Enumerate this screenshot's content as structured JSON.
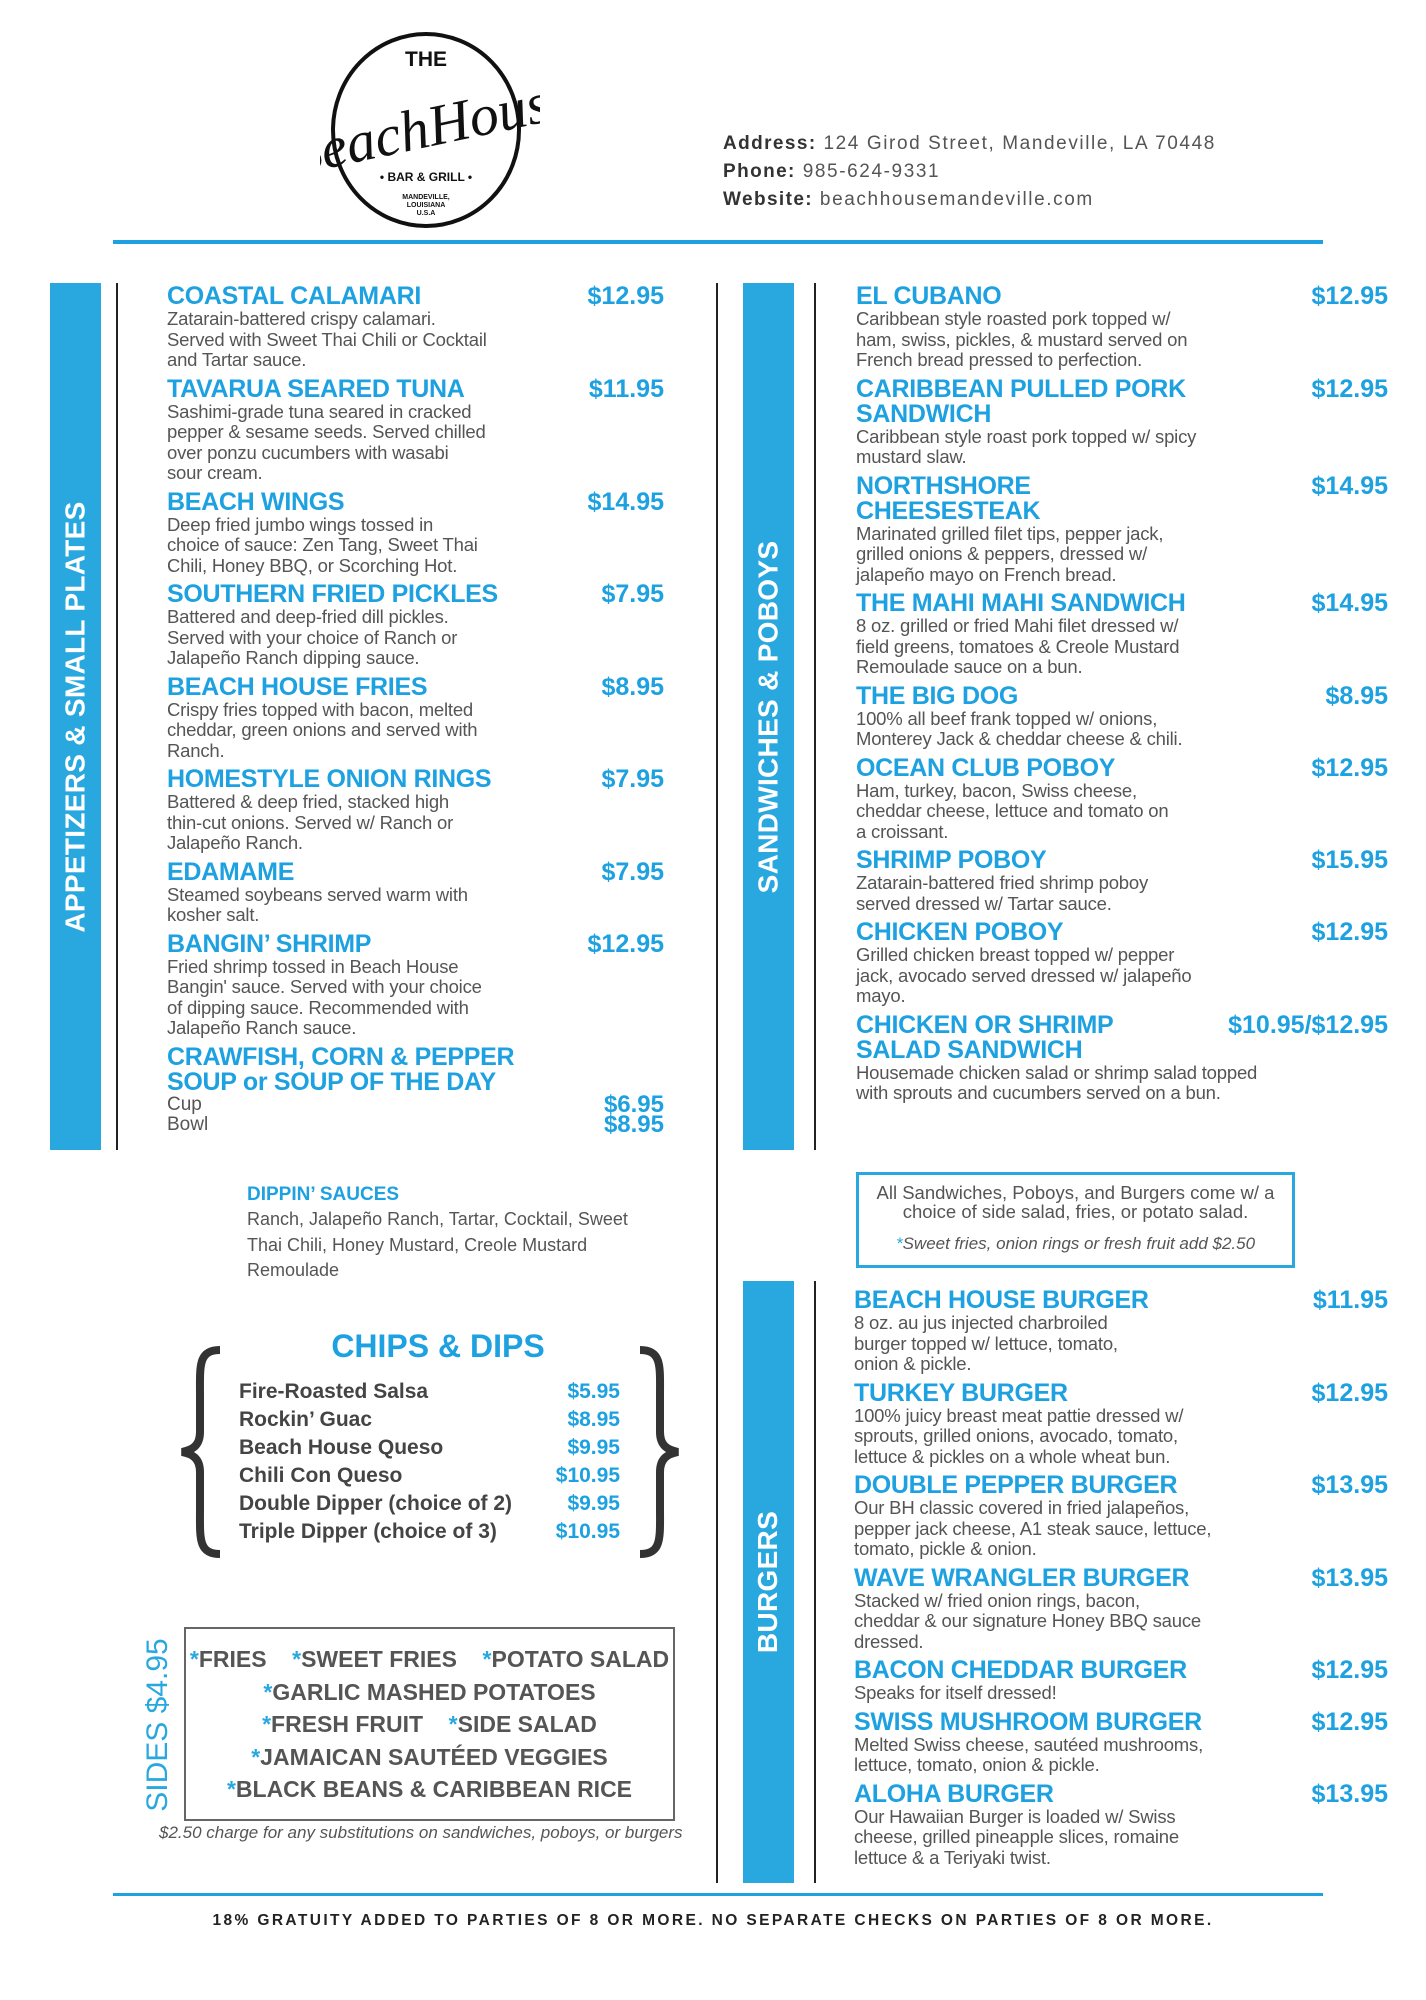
{
  "logo": {
    "top": "THE",
    "script": "BeachHouse",
    "sub": "• BAR & GRILL •",
    "place": [
      "MANDEVILLE,",
      "LOUISIANA",
      "U.S.A"
    ]
  },
  "contact": [
    {
      "label": "Address:",
      "value": "124 Girod Street, Mandeville, LA 70448"
    },
    {
      "label": "Phone:",
      "value": "985-624-9331"
    },
    {
      "label": "Website:",
      "value": "beachhousemandeville.com"
    }
  ],
  "colors": {
    "accent": "#29a8e0",
    "text": "#555555"
  },
  "appetizers": {
    "title": "APPETIZERS & SMALL PLATES",
    "items": [
      {
        "name": [
          "COASTAL CALAMARI"
        ],
        "price": "$12.95",
        "desc": [
          "Zatarain-battered crispy calamari.",
          "Served with Sweet Thai Chili or Cocktail",
          "and Tartar sauce."
        ]
      },
      {
        "name": [
          "TAVARUA SEARED TUNA"
        ],
        "price": "$11.95",
        "desc": [
          "Sashimi-grade tuna seared in cracked",
          "pepper & sesame seeds. Served chilled",
          "over ponzu cucumbers with wasabi",
          "sour cream."
        ]
      },
      {
        "name": [
          "BEACH WINGS"
        ],
        "price": "$14.95",
        "desc": [
          "Deep fried jumbo wings tossed in",
          "choice of sauce: Zen Tang, Sweet Thai",
          "Chili, Honey BBQ, or Scorching Hot."
        ]
      },
      {
        "name": [
          "SOUTHERN FRIED PICKLES"
        ],
        "price": "$7.95",
        "desc": [
          "Battered and deep-fried dill pickles.",
          "Served with your choice of Ranch or",
          "Jalapeño Ranch dipping sauce."
        ]
      },
      {
        "name": [
          "BEACH HOUSE FRIES"
        ],
        "price": "$8.95",
        "desc": [
          "Crispy fries topped with bacon, melted",
          "cheddar, green onions and served with",
          "Ranch."
        ]
      },
      {
        "name": [
          "HOMESTYLE ONION RINGS"
        ],
        "price": "$7.95",
        "desc": [
          "Battered & deep fried, stacked high",
          "thin-cut onions. Served w/ Ranch or",
          "Jalapeño Ranch."
        ]
      },
      {
        "name": [
          "EDAMAME"
        ],
        "price": "$7.95",
        "desc": [
          "Steamed soybeans served warm with",
          "kosher salt."
        ]
      },
      {
        "name": [
          "BANGIN’ SHRIMP"
        ],
        "price": "$12.95",
        "desc": [
          "Fried shrimp tossed in Beach House",
          "Bangin' sauce. Served with your choice",
          "of dipping sauce. Recommended with",
          "Jalapeño Ranch sauce."
        ]
      },
      {
        "name": [
          "CRAWFISH, CORN & PEPPER",
          "SOUP or SOUP OF THE DAY"
        ],
        "price": "",
        "desc": [],
        "options": [
          {
            "label": "Cup",
            "price": "$6.95"
          },
          {
            "label": "Bowl",
            "price": "$8.95"
          }
        ]
      }
    ]
  },
  "dippin": {
    "title": "DIPPIN’ SAUCES",
    "lines": [
      "Ranch, Jalapeño Ranch, Tartar, Cocktail, Sweet",
      "Thai Chili, Honey Mustard, Creole Mustard",
      "Remoulade"
    ]
  },
  "chips": {
    "title": "CHIPS & DIPS",
    "items": [
      {
        "name": "Fire-Roasted Salsa",
        "price": "$5.95"
      },
      {
        "name": "Rockin’ Guac",
        "price": "$8.95"
      },
      {
        "name": "Beach House Queso",
        "price": "$9.95"
      },
      {
        "name": "Chili Con Queso",
        "price": "$10.95"
      },
      {
        "name": "Double Dipper (choice of 2)",
        "price": "$9.95"
      },
      {
        "name": "Triple Dipper (choice of 3)",
        "price": "$10.95"
      }
    ]
  },
  "sides": {
    "title": "SIDES $4.95",
    "lines": [
      [
        "FRIES",
        "SWEET FRIES",
        "POTATO SALAD"
      ],
      [
        "GARLIC MASHED POTATOES"
      ],
      [
        "FRESH FRUIT",
        "SIDE SALAD"
      ],
      [
        "JAMAICAN SAUTÉED VEGGIES"
      ],
      [
        "BLACK BEANS & CARIBBEAN RICE"
      ]
    ],
    "note": "$2.50 charge for any substitutions on sandwiches, poboys, or burgers"
  },
  "sandwiches": {
    "title": "SANDWICHES & POBOYS",
    "items": [
      {
        "name": [
          "EL CUBANO"
        ],
        "price": "$12.95",
        "desc": [
          "Caribbean style roasted pork topped w/",
          "ham, swiss, pickles, & mustard served on",
          "French bread pressed to perfection."
        ]
      },
      {
        "name": [
          "CARIBBEAN PULLED PORK",
          "SANDWICH"
        ],
        "price": "$12.95",
        "desc": [
          "Caribbean style roast pork topped w/ spicy",
          "mustard slaw."
        ]
      },
      {
        "name": [
          "NORTHSHORE",
          "CHEESESTEAK"
        ],
        "price": "$14.95",
        "desc": [
          "Marinated grilled filet tips, pepper jack,",
          "grilled onions & peppers, dressed w/",
          "jalapeño mayo on French bread."
        ]
      },
      {
        "name": [
          "THE MAHI MAHI SANDWICH"
        ],
        "price": "$14.95",
        "desc": [
          "8 oz. grilled or fried Mahi filet dressed w/",
          "field greens, tomatoes & Creole Mustard",
          "Remoulade sauce on a bun."
        ]
      },
      {
        "name": [
          "THE BIG DOG"
        ],
        "price": "$8.95",
        "desc": [
          "100% all beef frank topped w/ onions,",
          "Monterey Jack & cheddar cheese & chili."
        ]
      },
      {
        "name": [
          "OCEAN CLUB POBOY"
        ],
        "price": "$12.95",
        "desc": [
          "Ham, turkey, bacon, Swiss cheese,",
          "cheddar cheese, lettuce and tomato on",
          "a croissant."
        ]
      },
      {
        "name": [
          "SHRIMP POBOY"
        ],
        "price": "$15.95",
        "desc": [
          "Zatarain-battered fried shrimp poboy",
          "served dressed w/ Tartar sauce."
        ]
      },
      {
        "name": [
          "CHICKEN POBOY"
        ],
        "price": "$12.95",
        "desc": [
          "Grilled chicken breast topped w/ pepper",
          "jack, avocado served dressed w/ jalapeño",
          "mayo."
        ]
      },
      {
        "name": [
          "CHICKEN OR SHRIMP",
          "SALAD SANDWICH"
        ],
        "price": "$10.95/$12.95",
        "desc": [
          "Housemade chicken salad or shrimp salad topped",
          "with sprouts and cucumbers served on a bun."
        ]
      }
    ]
  },
  "side_note": {
    "lines": [
      "All Sandwiches, Poboys, and Burgers come w/ a",
      "choice of side salad, fries, or potato salad."
    ],
    "asterisk": "*",
    "upcharge": "Sweet fries, onion rings or fresh fruit add $2.50"
  },
  "burgers": {
    "title": "BURGERS",
    "items": [
      {
        "name": [
          "BEACH HOUSE BURGER"
        ],
        "price": "$11.95",
        "desc": [
          "8 oz. au jus injected charbroiled",
          "burger topped w/ lettuce, tomato,",
          "onion & pickle."
        ]
      },
      {
        "name": [
          "TURKEY BURGER"
        ],
        "price": "$12.95",
        "desc": [
          "100% juicy breast meat pattie dressed w/",
          "sprouts, grilled onions, avocado, tomato,",
          "lettuce & pickles on a whole wheat bun."
        ]
      },
      {
        "name": [
          "DOUBLE PEPPER BURGER"
        ],
        "price": "$13.95",
        "desc": [
          "Our BH classic covered in fried jalapeños,",
          "pepper jack cheese, A1 steak sauce, lettuce,",
          "tomato, pickle & onion."
        ]
      },
      {
        "name": [
          "WAVE WRANGLER BURGER"
        ],
        "price": "$13.95",
        "desc": [
          "Stacked w/ fried onion rings, bacon,",
          "cheddar & our signature Honey BBQ sauce",
          "dressed."
        ]
      },
      {
        "name": [
          "BACON CHEDDAR BURGER"
        ],
        "price": "$12.95",
        "desc": [
          "Speaks for itself dressed!"
        ]
      },
      {
        "name": [
          "SWISS MUSHROOM BURGER"
        ],
        "price": "$12.95",
        "desc": [
          "Melted Swiss cheese, sautéed mushrooms,",
          "lettuce, tomato, onion & pickle."
        ]
      },
      {
        "name": [
          "ALOHA BURGER"
        ],
        "price": "$13.95",
        "desc": [
          "Our Hawaiian Burger is loaded w/ Swiss",
          "cheese, grilled pineapple slices, romaine",
          "lettuce & a Teriyaki twist."
        ]
      }
    ]
  },
  "footer": "18% GRATUITY ADDED TO PARTIES OF 8 OR MORE. NO SEPARATE CHECKS ON PARTIES OF 8 OR MORE."
}
